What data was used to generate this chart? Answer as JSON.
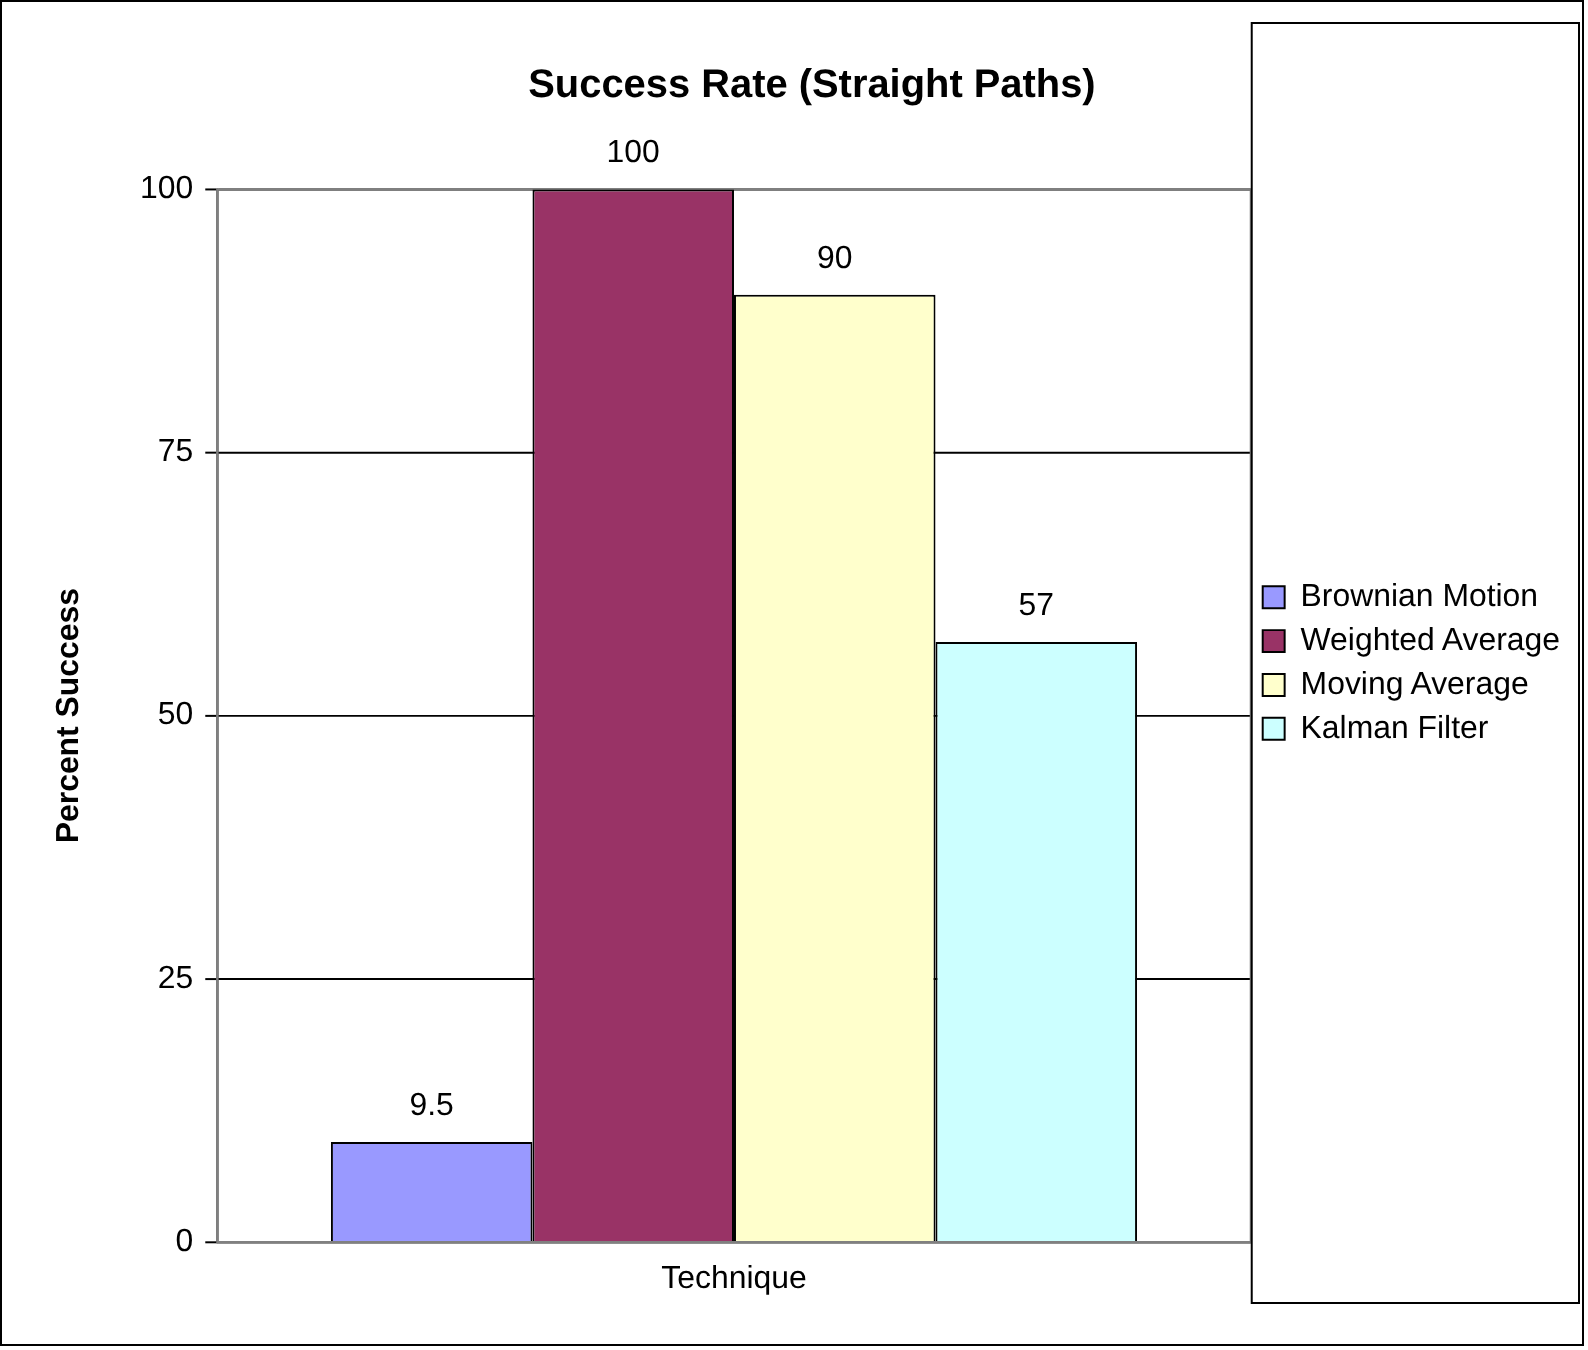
{
  "chart_data": {
    "type": "bar",
    "title": "Success Rate (Straight Paths)",
    "ylabel": "Percent Success",
    "categories": [
      "Technique"
    ],
    "series": [
      {
        "name": "Brownian Motion",
        "color": "#9999ff",
        "values": [
          9.5
        ]
      },
      {
        "name": "Weighted Average",
        "color": "#993366",
        "values": [
          100
        ]
      },
      {
        "name": "Moving Average",
        "color": "#ffffcc",
        "values": [
          90
        ]
      },
      {
        "name": "Kalman Filter",
        "color": "#ccffff",
        "values": [
          57
        ]
      }
    ],
    "ylim": [
      0,
      100
    ],
    "yticks": [
      0,
      25,
      50,
      75,
      100
    ],
    "grid": "y",
    "legend": "right",
    "data_labels": true
  }
}
